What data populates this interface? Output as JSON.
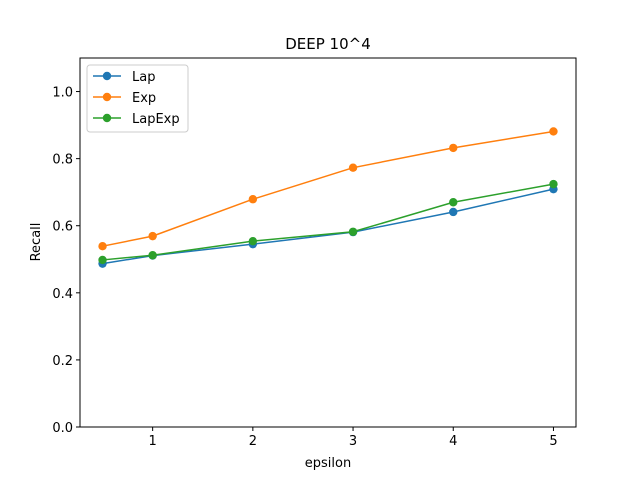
{
  "chart_data": {
    "type": "line",
    "title": "DEEP 10^4",
    "xlabel": "epsilon",
    "ylabel": "Recall",
    "x": [
      0.5,
      1,
      2,
      3,
      4,
      5
    ],
    "xlim": [
      0.275,
      5.225
    ],
    "ylim": [
      0.0,
      1.1
    ],
    "xticks": [
      1,
      2,
      3,
      4,
      5
    ],
    "yticks": [
      0.0,
      0.2,
      0.4,
      0.6,
      0.8,
      1.0
    ],
    "xtick_labels": [
      "1",
      "2",
      "3",
      "4",
      "5"
    ],
    "ytick_labels": [
      "0.0",
      "0.2",
      "0.4",
      "0.6",
      "0.8",
      "1.0"
    ],
    "grid": false,
    "legend_position": "top-left",
    "series": [
      {
        "name": "Lap",
        "color": "#1f77b4",
        "values": [
          0.487,
          0.511,
          0.545,
          0.581,
          0.641,
          0.709
        ]
      },
      {
        "name": "Exp",
        "color": "#ff7f0e",
        "values": [
          0.539,
          0.569,
          0.679,
          0.773,
          0.832,
          0.881
        ]
      },
      {
        "name": "LapExp",
        "color": "#2ca02c",
        "values": [
          0.498,
          0.512,
          0.554,
          0.582,
          0.67,
          0.724
        ]
      }
    ]
  }
}
